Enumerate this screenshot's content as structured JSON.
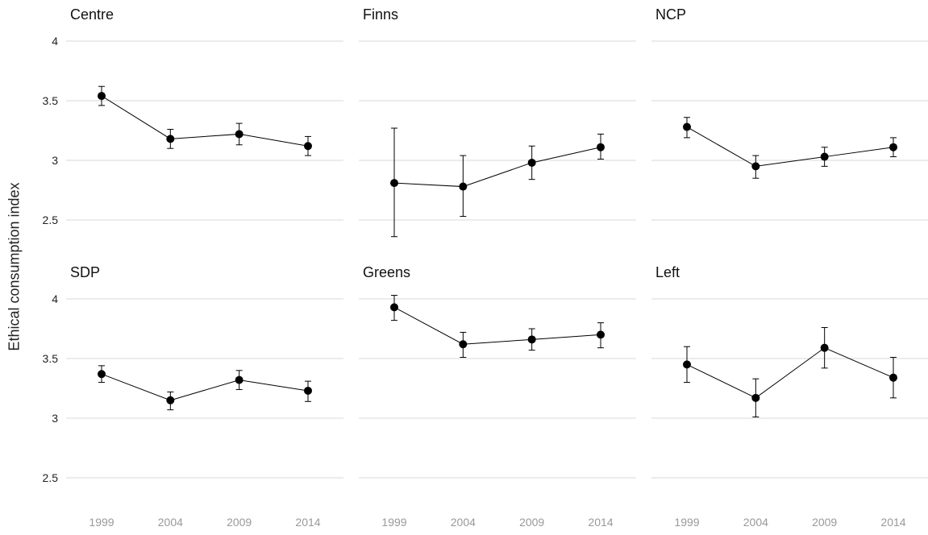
{
  "chart_data": {
    "type": "line",
    "ylabel": "Ethical consumption index",
    "xlabel": "",
    "x_ticks": [
      "1999",
      "2004",
      "2009",
      "2014"
    ],
    "y_ticks": [
      "2.5",
      "3",
      "3.5",
      "4"
    ],
    "ylim": [
      2.35,
      4.1
    ],
    "grid": "horizontal major",
    "facets": [
      {
        "title": "Centre",
        "points": [
          {
            "x": "1999",
            "y": 3.54,
            "lo": 3.46,
            "hi": 3.62
          },
          {
            "x": "2004",
            "y": 3.18,
            "lo": 3.1,
            "hi": 3.26
          },
          {
            "x": "2009",
            "y": 3.22,
            "lo": 3.13,
            "hi": 3.31
          },
          {
            "x": "2014",
            "y": 3.12,
            "lo": 3.04,
            "hi": 3.2
          }
        ]
      },
      {
        "title": "Finns",
        "points": [
          {
            "x": "1999",
            "y": 2.81,
            "lo": 2.36,
            "hi": 3.27
          },
          {
            "x": "2004",
            "y": 2.78,
            "lo": 2.53,
            "hi": 3.04
          },
          {
            "x": "2009",
            "y": 2.98,
            "lo": 2.84,
            "hi": 3.12
          },
          {
            "x": "2014",
            "y": 3.11,
            "lo": 3.01,
            "hi": 3.22
          }
        ]
      },
      {
        "title": "NCP",
        "points": [
          {
            "x": "1999",
            "y": 3.28,
            "lo": 3.19,
            "hi": 3.36
          },
          {
            "x": "2004",
            "y": 2.95,
            "lo": 2.85,
            "hi": 3.04
          },
          {
            "x": "2009",
            "y": 3.03,
            "lo": 2.95,
            "hi": 3.11
          },
          {
            "x": "2014",
            "y": 3.11,
            "lo": 3.03,
            "hi": 3.19
          }
        ]
      },
      {
        "title": "SDP",
        "points": [
          {
            "x": "1999",
            "y": 3.37,
            "lo": 3.3,
            "hi": 3.44
          },
          {
            "x": "2004",
            "y": 3.15,
            "lo": 3.07,
            "hi": 3.22
          },
          {
            "x": "2009",
            "y": 3.32,
            "lo": 3.24,
            "hi": 3.4
          },
          {
            "x": "2014",
            "y": 3.23,
            "lo": 3.14,
            "hi": 3.31
          }
        ]
      },
      {
        "title": "Greens",
        "points": [
          {
            "x": "1999",
            "y": 3.93,
            "lo": 3.82,
            "hi": 4.03
          },
          {
            "x": "2004",
            "y": 3.62,
            "lo": 3.51,
            "hi": 3.72
          },
          {
            "x": "2009",
            "y": 3.66,
            "lo": 3.57,
            "hi": 3.75
          },
          {
            "x": "2014",
            "y": 3.7,
            "lo": 3.59,
            "hi": 3.8
          }
        ]
      },
      {
        "title": "Left",
        "points": [
          {
            "x": "1999",
            "y": 3.45,
            "lo": 3.3,
            "hi": 3.6
          },
          {
            "x": "2004",
            "y": 3.17,
            "lo": 3.01,
            "hi": 3.33
          },
          {
            "x": "2009",
            "y": 3.59,
            "lo": 3.42,
            "hi": 3.76
          },
          {
            "x": "2014",
            "y": 3.34,
            "lo": 3.17,
            "hi": 3.51
          }
        ]
      }
    ],
    "colors": {
      "series": "#000000",
      "grid": "#d9d9d9",
      "tick_x": "#999999",
      "tick_y": "#222222",
      "title": "#111111"
    }
  }
}
